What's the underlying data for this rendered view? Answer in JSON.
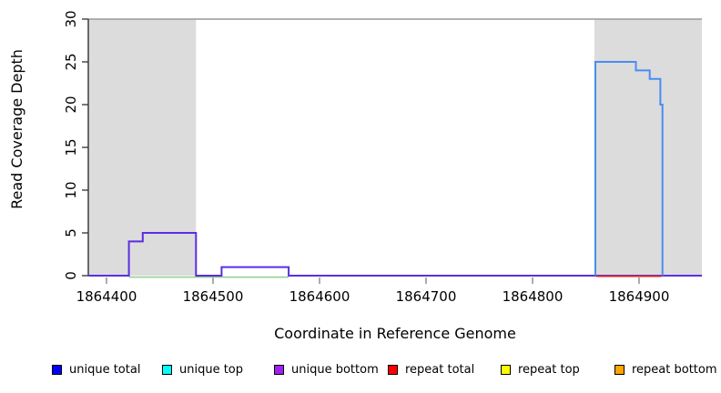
{
  "chart_data": {
    "type": "line",
    "subtype": "step-coverage",
    "title": "",
    "xlabel": "Coordinate in Reference Genome",
    "ylabel": "Read Coverage Depth",
    "xlim": [
      1864383,
      1864959
    ],
    "ylim": [
      0,
      30
    ],
    "x_ticks": [
      1864400,
      1864500,
      1864600,
      1864700,
      1864800,
      1864900
    ],
    "y_ticks": [
      0,
      5,
      10,
      15,
      20,
      25,
      30
    ],
    "grid": "off",
    "shaded_regions": [
      {
        "start": 1864383,
        "end": 1864484,
        "color": "#DCDCDC"
      },
      {
        "start": 1864858,
        "end": 1864959,
        "color": "#DCDCDC"
      }
    ],
    "top_reference_line_y": 30,
    "series": [
      {
        "name": "zero-depth segment (light green)",
        "color": "#8FCE8F",
        "points": [
          [
            1864421,
            0
          ],
          [
            1864571,
            0
          ]
        ]
      },
      {
        "name": "unique bottom",
        "color": "#5B2EE1",
        "points": [
          [
            1864383,
            0
          ],
          [
            1864421,
            0
          ],
          [
            1864421,
            4
          ],
          [
            1864434,
            4
          ],
          [
            1864434,
            5
          ],
          [
            1864484,
            5
          ],
          [
            1864484,
            0
          ],
          [
            1864508,
            0
          ],
          [
            1864508,
            1
          ],
          [
            1864571,
            1
          ],
          [
            1864571,
            0
          ],
          [
            1864959,
            0
          ]
        ]
      },
      {
        "name": "repeat total",
        "color": "#E02424",
        "points": [
          [
            1864860,
            0
          ],
          [
            1864921,
            0
          ]
        ]
      },
      {
        "name": "unique total",
        "color": "#4B8BF5",
        "points": [
          [
            1864859,
            0
          ],
          [
            1864859,
            25
          ],
          [
            1864897,
            25
          ],
          [
            1864897,
            24
          ],
          [
            1864910,
            24
          ],
          [
            1864910,
            23
          ],
          [
            1864920,
            23
          ],
          [
            1864920,
            20
          ],
          [
            1864922,
            20
          ],
          [
            1864922,
            0
          ]
        ]
      }
    ],
    "legend": [
      {
        "label": "unique total",
        "color": "#0000FF"
      },
      {
        "label": "unique top",
        "color": "#00FFFF"
      },
      {
        "label": "unique bottom",
        "color": "#A020F0"
      },
      {
        "label": "repeat total",
        "color": "#FF0000"
      },
      {
        "label": "repeat top",
        "color": "#FFFF00"
      },
      {
        "label": "repeat bottom",
        "color": "#FFA500"
      }
    ],
    "legend_position": "bottom"
  }
}
